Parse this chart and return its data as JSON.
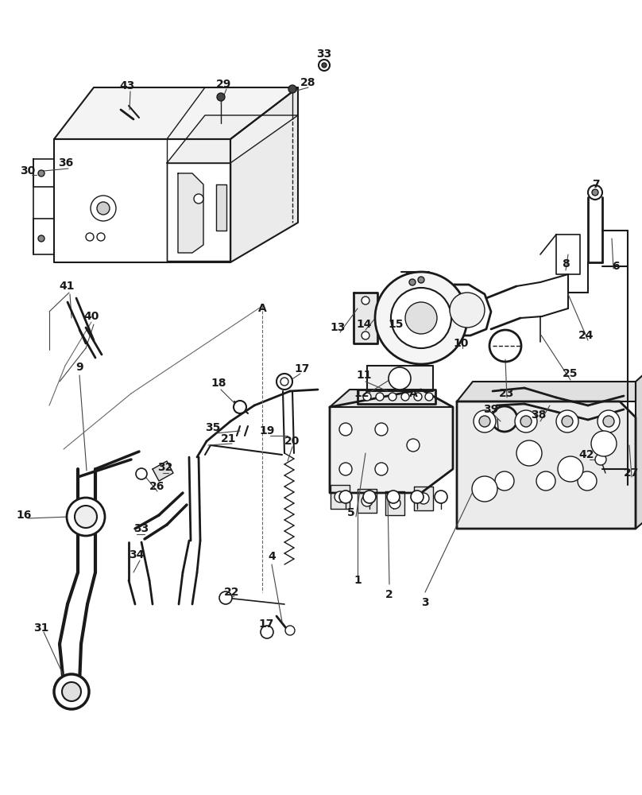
{
  "bg_color": "#ffffff",
  "line_color": "#1a1a1a",
  "figsize": [
    8.08,
    10.0
  ],
  "dpi": 100,
  "xlim": [
    0,
    808
  ],
  "ylim": [
    0,
    1000
  ]
}
